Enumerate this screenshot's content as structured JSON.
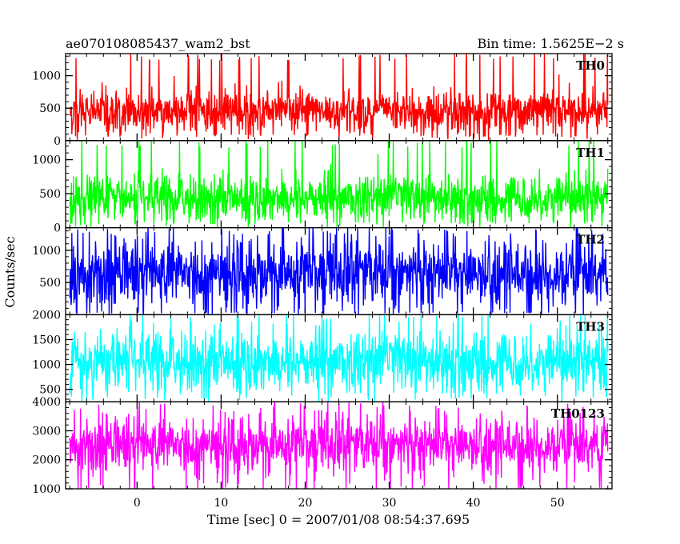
{
  "chart_data": {
    "type": "line",
    "title_left": "ae070108085437_wam2_bst",
    "title_right": "Bin time: 1.5625E−2 s",
    "xlabel": "Time [sec] 0 = 2007/01/08 08:54:37.695",
    "ylabel": "Counts/sec",
    "xlim": [
      -8.5,
      56.5
    ],
    "x_start": -8,
    "x_end": 56,
    "x_ticks": [
      "0",
      "10",
      "20",
      "30",
      "40",
      "50"
    ],
    "grid": false,
    "panels": [
      {
        "name": "TH0",
        "color": "#ff0000",
        "ylim": [
          0,
          1340
        ],
        "ticks": [
          "0",
          "500",
          "1000"
        ],
        "median": 450,
        "spread": 170,
        "lower": 80,
        "upper": 1340
      },
      {
        "name": "TH1",
        "color": "#00ff00",
        "ylim": [
          0,
          1280
        ],
        "ticks": [
          "0",
          "500",
          "1000"
        ],
        "median": 430,
        "spread": 170,
        "lower": 70,
        "upper": 1280
      },
      {
        "name": "TH2",
        "color": "#0000ff",
        "ylim": [
          0,
          1350
        ],
        "ticks": [
          "500",
          "1000"
        ],
        "median": 640,
        "spread": 260,
        "lower": 30,
        "upper": 1350
      },
      {
        "name": "TH3",
        "color": "#00ffff",
        "ylim": [
          250,
          2000
        ],
        "ticks": [
          "500",
          "1000",
          "1500",
          "2000"
        ],
        "median": 1050,
        "spread": 300,
        "lower": 400,
        "upper": 2000
      },
      {
        "name": "TH0123",
        "color": "#ff00ff",
        "ylim": [
          1000,
          4000
        ],
        "ticks": [
          "1000",
          "2000",
          "3000",
          "4000"
        ],
        "median": 2500,
        "spread": 480,
        "lower": 1000,
        "upper": 3950
      }
    ]
  }
}
